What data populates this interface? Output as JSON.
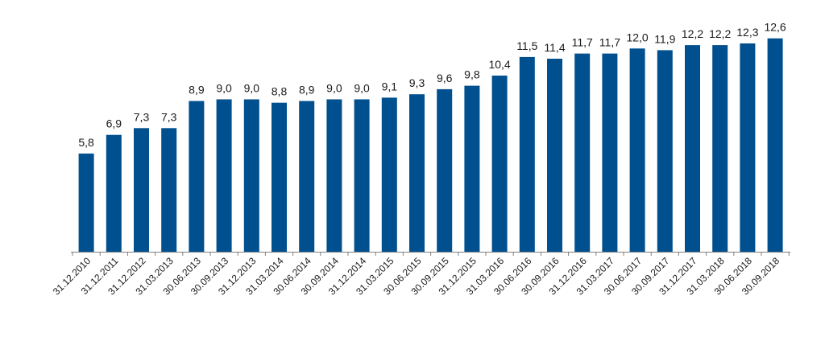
{
  "chart_data": {
    "type": "bar",
    "title": "",
    "xlabel": "",
    "ylabel": "",
    "bar_color": "#00508f",
    "axis_color": "#808080",
    "label_color": "#1a1a1a",
    "grid": false,
    "legend": "none",
    "ylim": [
      0,
      14.2
    ],
    "categories": [
      "31.12.2010",
      "31.12.2011",
      "31.12.2012",
      "31.03.2013",
      "30.06.2013",
      "30.09.2013",
      "31.12.2013",
      "31.03.2014",
      "30.06.2014",
      "30.09.2014",
      "31.12.2014",
      "31.03.2015",
      "30.06.2015",
      "30.09.2015",
      "31.12.2015",
      "31.03.2016",
      "30.06.2016",
      "30.09.2016",
      "31.12.2016",
      "31.03.2017",
      "30.06.2017",
      "30.09.2017",
      "31.12.2017",
      "31.03.2018",
      "30.06.2018",
      "30.09.2018"
    ],
    "values": [
      5.8,
      6.9,
      7.3,
      7.3,
      8.9,
      9.0,
      9.0,
      8.8,
      8.9,
      9.0,
      9.0,
      9.1,
      9.3,
      9.6,
      9.8,
      10.4,
      11.5,
      11.4,
      11.7,
      11.7,
      12.0,
      11.9,
      12.2,
      12.2,
      12.3,
      12.6
    ],
    "value_labels": [
      "5,8",
      "6,9",
      "7,3",
      "7,3",
      "8,9",
      "9,0",
      "9,0",
      "8,8",
      "8,9",
      "9,0",
      "9,0",
      "9,1",
      "9,3",
      "9,6",
      "9,8",
      "10,4",
      "11,5",
      "11,4",
      "11,7",
      "11,7",
      "12,0",
      "11,9",
      "12,2",
      "12,2",
      "12,3",
      "12,6"
    ]
  }
}
